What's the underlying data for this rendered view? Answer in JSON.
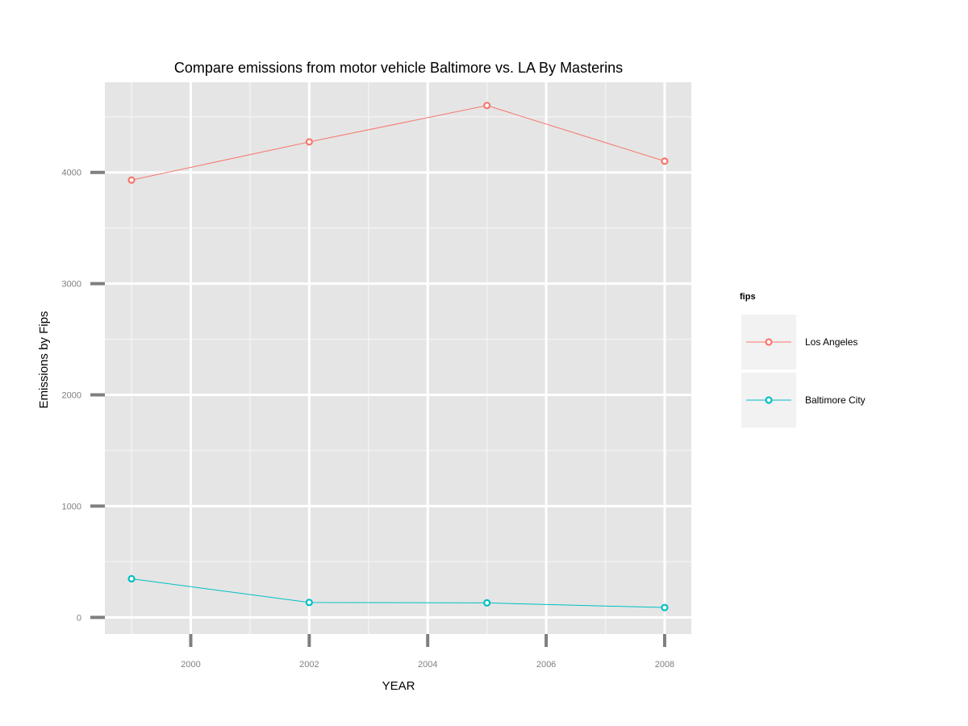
{
  "chart_data": {
    "type": "line",
    "title": "Compare emissions from motor vehicle  Baltimore vs. LA  By Masterins",
    "xlabel": "YEAR",
    "ylabel": "Emissions by Fips",
    "x": [
      1999,
      2002,
      2005,
      2008
    ],
    "x_ticks": [
      2000,
      2002,
      2004,
      2006,
      2008
    ],
    "y_ticks": [
      0,
      1000,
      2000,
      3000,
      4000
    ],
    "xlim": [
      1998.55,
      2008.45
    ],
    "ylim": [
      -150,
      4810
    ],
    "grid": true,
    "legend": {
      "title": "fips",
      "position": "right"
    },
    "series": [
      {
        "name": "Los Angeles",
        "color": "#f8766d",
        "values": [
          3931,
          4274,
          4601,
          4101
        ]
      },
      {
        "name": "Baltimore City",
        "color": "#00bfc4",
        "values": [
          347,
          134,
          130,
          88
        ]
      }
    ]
  }
}
